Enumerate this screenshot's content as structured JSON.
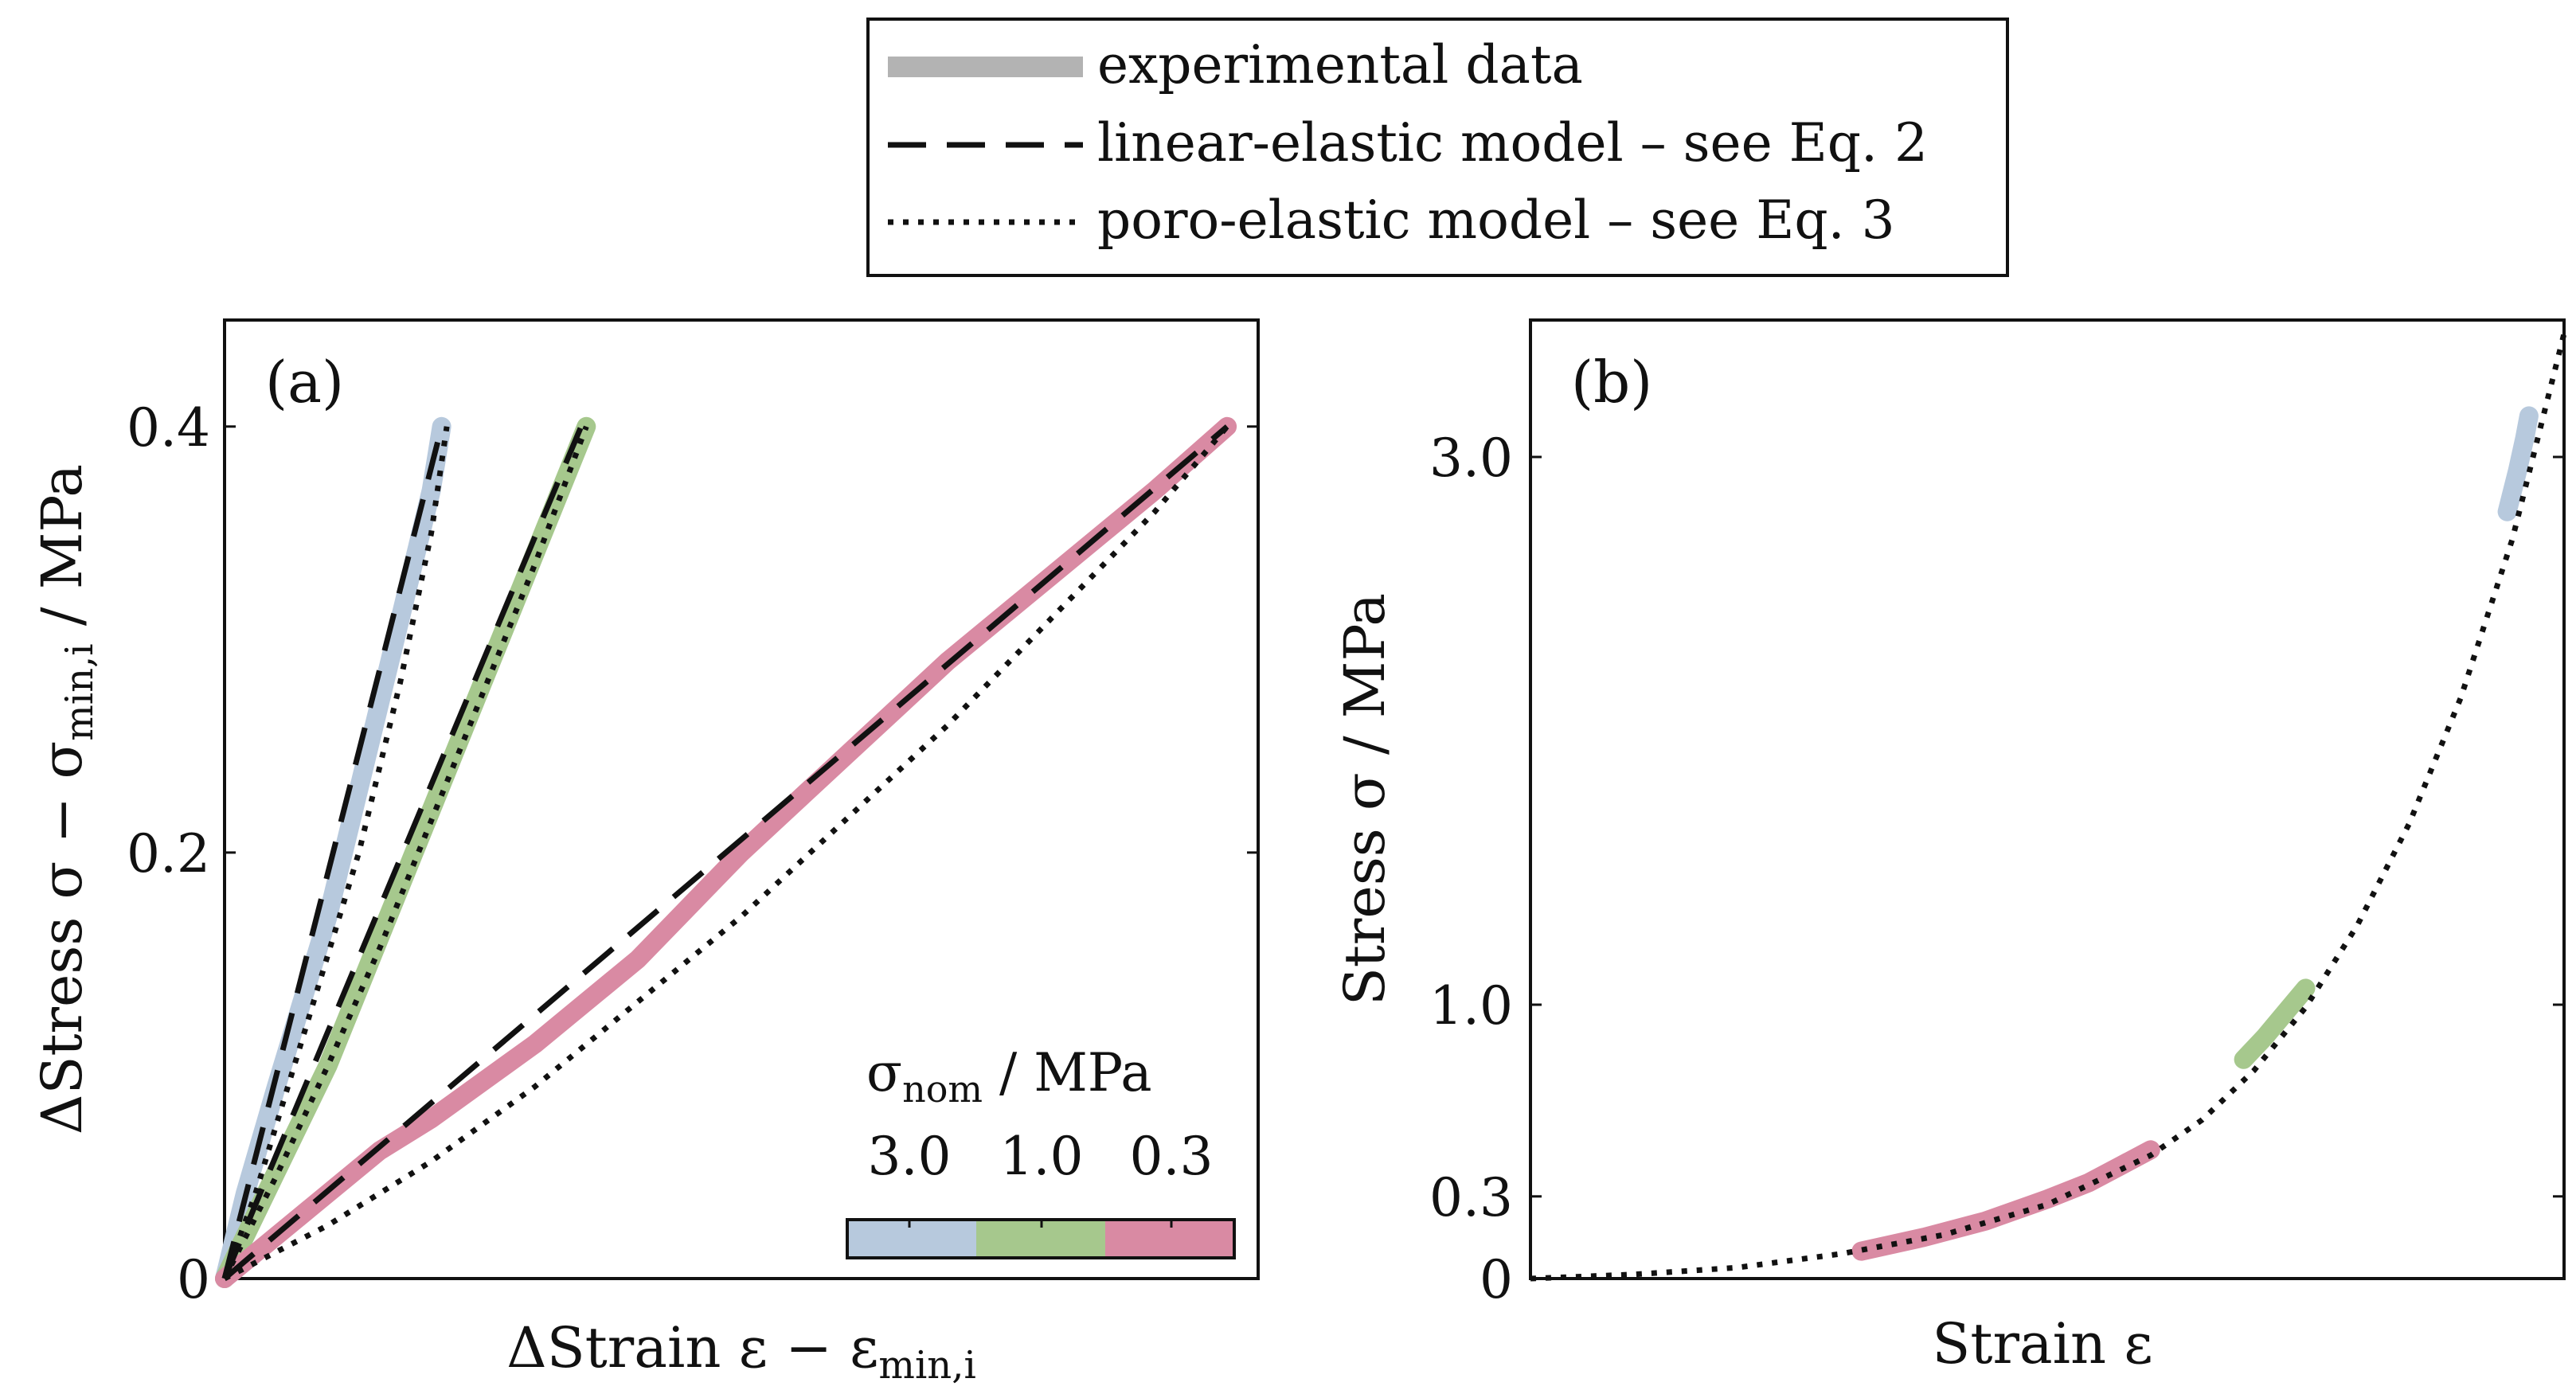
{
  "legend": {
    "entries": [
      {
        "label": "experimental data",
        "style": "thick-gray"
      },
      {
        "label": "linear-elastic model – see Eq. 2",
        "style": "dashed"
      },
      {
        "label": "poro-elastic model – see Eq. 3",
        "style": "dotted"
      }
    ]
  },
  "colors": {
    "s3": "#b7c9dd",
    "s1": "#a6c88d",
    "s03": "#d98aa3",
    "axis": "#111111",
    "legend_gray": "#b3b3b3"
  },
  "chart_data": [
    {
      "type": "line",
      "panel_label": "(a)",
      "xlabel": "ΔStrain ε − ε",
      "xlabel_sub": "min,i",
      "ylabel": "ΔStress σ − σ",
      "ylabel_sub": "min,i",
      "ylabel_suffix": " / MPa",
      "xlim": [
        0,
        1
      ],
      "ylim": [
        0,
        0.45
      ],
      "yticks": [
        0,
        0.2,
        0.4
      ],
      "ytick_labels": [
        "0",
        "0.2",
        "0.4"
      ],
      "colorbar": {
        "title": "σ",
        "title_sub": "nom",
        "title_suffix": " / MPa",
        "labels": [
          "3.0",
          "1.0",
          "0.3"
        ]
      },
      "series": [
        {
          "name": "3.0",
          "kind": "experimental",
          "x": [
            0,
            0.02,
            0.05,
            0.1,
            0.14,
            0.17,
            0.19,
            0.2,
            0.205,
            0.21
          ],
          "y": [
            0,
            0.04,
            0.09,
            0.17,
            0.25,
            0.31,
            0.35,
            0.37,
            0.385,
            0.4
          ]
        },
        {
          "name": "3.0",
          "kind": "linear-elastic",
          "x": [
            0,
            0.21
          ],
          "y": [
            0,
            0.4
          ]
        },
        {
          "name": "3.0",
          "kind": "poro-elastic",
          "x": [
            0,
            0.03,
            0.08,
            0.13,
            0.17,
            0.2,
            0.215
          ],
          "y": [
            0,
            0.04,
            0.12,
            0.2,
            0.28,
            0.35,
            0.4
          ]
        },
        {
          "name": "1.0",
          "kind": "experimental",
          "x": [
            0,
            0.05,
            0.1,
            0.15,
            0.2,
            0.25,
            0.3,
            0.35
          ],
          "y": [
            0,
            0.05,
            0.1,
            0.16,
            0.22,
            0.28,
            0.34,
            0.4
          ]
        },
        {
          "name": "1.0",
          "kind": "linear-elastic",
          "x": [
            0,
            0.345
          ],
          "y": [
            0,
            0.4
          ]
        },
        {
          "name": "1.0",
          "kind": "poro-elastic",
          "x": [
            0,
            0.05,
            0.1,
            0.15,
            0.2,
            0.25,
            0.3,
            0.35
          ],
          "y": [
            0,
            0.048,
            0.1,
            0.155,
            0.215,
            0.275,
            0.335,
            0.4
          ]
        },
        {
          "name": "0.3",
          "kind": "experimental",
          "x": [
            0,
            0.05,
            0.1,
            0.15,
            0.2,
            0.3,
            0.4,
            0.5,
            0.6,
            0.7,
            0.8,
            0.9,
            0.97
          ],
          "y": [
            0,
            0.02,
            0.04,
            0.06,
            0.075,
            0.11,
            0.15,
            0.2,
            0.245,
            0.29,
            0.33,
            0.37,
            0.4
          ]
        },
        {
          "name": "0.3",
          "kind": "linear-elastic",
          "x": [
            0,
            0.97
          ],
          "y": [
            0,
            0.4
          ]
        },
        {
          "name": "0.3",
          "kind": "poro-elastic",
          "x": [
            0,
            0.1,
            0.2,
            0.3,
            0.4,
            0.5,
            0.6,
            0.7,
            0.8,
            0.9,
            0.97
          ],
          "y": [
            0,
            0.025,
            0.055,
            0.09,
            0.13,
            0.17,
            0.215,
            0.26,
            0.31,
            0.36,
            0.4
          ]
        }
      ]
    },
    {
      "type": "line",
      "panel_label": "(b)",
      "xlabel": "Strain ε",
      "ylabel": "Stress σ / MPa",
      "xlim": [
        0,
        1
      ],
      "ylim": [
        0,
        3.5
      ],
      "yticks": [
        0,
        0.3,
        1.0,
        3.0
      ],
      "ytick_labels": [
        "0",
        "0.3",
        "1.0",
        "3.0"
      ],
      "series": [
        {
          "name": "0.3",
          "kind": "experimental",
          "x": [
            0.32,
            0.38,
            0.44,
            0.5,
            0.54,
            0.57,
            0.6
          ],
          "y": [
            0.1,
            0.15,
            0.21,
            0.29,
            0.35,
            0.41,
            0.47
          ]
        },
        {
          "name": "1.0",
          "kind": "experimental",
          "x": [
            0.69,
            0.71,
            0.73,
            0.75
          ],
          "y": [
            0.8,
            0.88,
            0.97,
            1.06
          ]
        },
        {
          "name": "3.0",
          "kind": "experimental",
          "x": [
            0.945,
            0.955,
            0.962,
            0.966
          ],
          "y": [
            2.8,
            2.95,
            3.07,
            3.15
          ]
        },
        {
          "name": "model",
          "kind": "poro-elastic",
          "x": [
            0,
            0.1,
            0.2,
            0.3,
            0.4,
            0.5,
            0.6,
            0.65,
            0.7,
            0.75,
            0.8,
            0.85,
            0.9,
            0.95,
            1.0
          ],
          "y": [
            0,
            0.015,
            0.04,
            0.09,
            0.16,
            0.27,
            0.45,
            0.58,
            0.76,
            0.99,
            1.29,
            1.66,
            2.12,
            2.7,
            3.45
          ]
        }
      ]
    }
  ]
}
